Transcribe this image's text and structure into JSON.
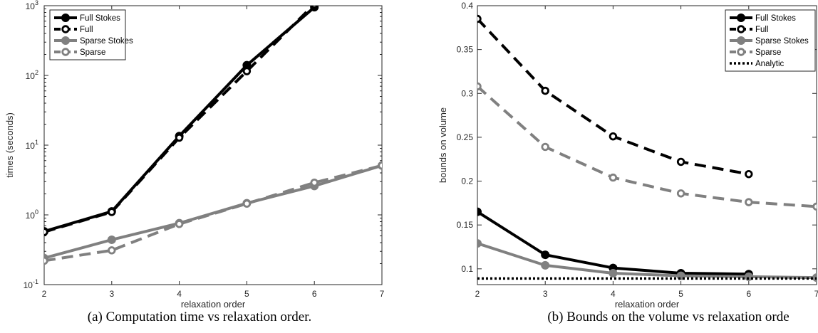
{
  "chart_data": [
    {
      "id": "a",
      "type": "line",
      "caption": "(a) Computation time vs relaxation order.",
      "xlabel": "relaxation order",
      "ylabel": "times (seconds)",
      "xlim": [
        2,
        7
      ],
      "ylim": [
        0.1,
        1000
      ],
      "yscale": "log",
      "xticks": [
        2,
        3,
        4,
        5,
        6,
        7
      ],
      "yticks": [
        {
          "value": 0.1,
          "base": "10",
          "exp": "-1"
        },
        {
          "value": 1,
          "base": "10",
          "exp": "0"
        },
        {
          "value": 10,
          "base": "10",
          "exp": "1"
        },
        {
          "value": 100,
          "base": "10",
          "exp": "2"
        },
        {
          "value": 1000,
          "base": "10",
          "exp": "3"
        }
      ],
      "legend_position": "top-left",
      "grid": false,
      "series": [
        {
          "name": "Full Stokes",
          "color": "#000000",
          "dashed": false,
          "marker": "filled",
          "x": [
            2,
            3,
            4,
            5,
            6
          ],
          "y": [
            0.58,
            1.12,
            13.5,
            140,
            950
          ]
        },
        {
          "name": "Full",
          "color": "#000000",
          "dashed": true,
          "marker": "open",
          "x": [
            2,
            3,
            4,
            5,
            6
          ],
          "y": [
            0.57,
            1.1,
            12.8,
            115,
            1050
          ]
        },
        {
          "name": "Sparse Stokes",
          "color": "#808080",
          "dashed": false,
          "marker": "filled",
          "x": [
            2,
            3,
            4,
            5,
            6,
            7
          ],
          "y": [
            0.24,
            0.44,
            0.76,
            1.47,
            2.6,
            5.1
          ]
        },
        {
          "name": "Sparse",
          "color": "#808080",
          "dashed": true,
          "marker": "open",
          "x": [
            2,
            3,
            4,
            5,
            6,
            7
          ],
          "y": [
            0.22,
            0.31,
            0.74,
            1.45,
            2.9,
            5.1
          ]
        }
      ]
    },
    {
      "id": "b",
      "type": "line",
      "caption": "(b) Bounds on the volume vs relaxation orde",
      "xlabel": "relaxation order",
      "ylabel": "bounds on volume",
      "xlim": [
        2,
        7
      ],
      "ylim": [
        0.082,
        0.4
      ],
      "yscale": "linear",
      "xticks": [
        2,
        3,
        4,
        5,
        6,
        7
      ],
      "yticks": [
        {
          "value": 0.1,
          "label": "0.1"
        },
        {
          "value": 0.15,
          "label": "0.15"
        },
        {
          "value": 0.2,
          "label": "0.2"
        },
        {
          "value": 0.25,
          "label": "0.25"
        },
        {
          "value": 0.3,
          "label": "0.3"
        },
        {
          "value": 0.35,
          "label": "0.35"
        },
        {
          "value": 0.4,
          "label": "0.4"
        }
      ],
      "legend_position": "top-right",
      "grid": false,
      "series": [
        {
          "name": "Full Stokes",
          "color": "#000000",
          "dashed": false,
          "marker": "filled",
          "x": [
            2,
            3,
            4,
            5,
            6
          ],
          "y": [
            0.165,
            0.116,
            0.101,
            0.095,
            0.094
          ]
        },
        {
          "name": "Full",
          "color": "#000000",
          "dashed": true,
          "marker": "open",
          "x": [
            2,
            3,
            4,
            5,
            6
          ],
          "y": [
            0.385,
            0.303,
            0.251,
            0.222,
            0.208
          ]
        },
        {
          "name": "Sparse Stokes",
          "color": "#808080",
          "dashed": false,
          "marker": "filled",
          "x": [
            2,
            3,
            4,
            5,
            6,
            7
          ],
          "y": [
            0.129,
            0.104,
            0.095,
            0.092,
            0.091,
            0.09
          ]
        },
        {
          "name": "Sparse",
          "color": "#808080",
          "dashed": true,
          "marker": "open",
          "x": [
            2,
            3,
            4,
            5,
            6,
            7
          ],
          "y": [
            0.308,
            0.239,
            0.204,
            0.186,
            0.176,
            0.171
          ]
        },
        {
          "name": "Analytic",
          "color": "#000000",
          "dashed": false,
          "dotted": true,
          "marker": "none",
          "x": [
            2,
            7
          ],
          "y": [
            0.089,
            0.089
          ]
        }
      ]
    }
  ]
}
